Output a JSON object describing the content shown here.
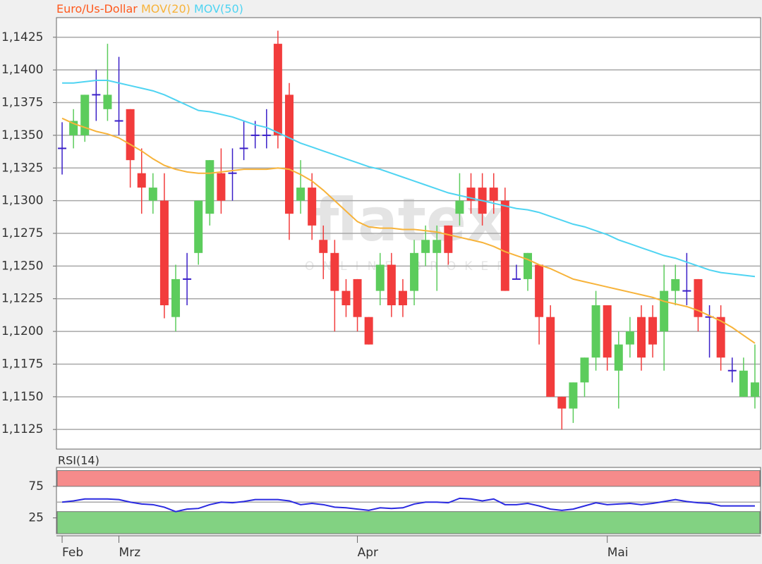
{
  "chart_data": [
    {
      "type": "candlestick",
      "name": "Euro/Us-Dollar",
      "name_color": "#ff5a1e",
      "up_color": "#5ccc5c",
      "down_color": "#f23c3c",
      "flat_color": "#3a1fc8",
      "watermark": "flatex",
      "watermark_sub": "ONLINE BROKER",
      "categories": [
        "Feb",
        null,
        null,
        null,
        null,
        "Mrz",
        null,
        null,
        null,
        null,
        null,
        null,
        null,
        null,
        null,
        null,
        null,
        null,
        null,
        null,
        null,
        null,
        null,
        null,
        null,
        null,
        "Apr",
        null,
        null,
        null,
        null,
        null,
        null,
        null,
        null,
        null,
        null,
        null,
        null,
        null,
        null,
        null,
        null,
        null,
        null,
        null,
        null,
        null,
        "Mai",
        null,
        null,
        null,
        null,
        null,
        null,
        null,
        null,
        null,
        null,
        null,
        null,
        null
      ],
      "open": [
        1.134,
        1.135,
        1.135,
        1.1381,
        1.137,
        1.1361,
        1.137,
        1.1321,
        1.13,
        1.13,
        1.1211,
        1.124,
        1.126,
        1.129,
        1.1321,
        1.1321,
        1.134,
        1.135,
        1.135,
        1.142,
        1.1381,
        1.13,
        1.131,
        1.127,
        1.126,
        1.1231,
        1.124,
        1.1211,
        1.1231,
        1.1251,
        1.1231,
        1.1231,
        1.126,
        1.126,
        1.1281,
        1.129,
        1.131,
        1.131,
        1.131,
        1.13,
        1.124,
        1.124,
        1.1251,
        1.1211,
        1.115,
        1.1141,
        1.1161,
        1.118,
        1.122,
        1.117,
        1.119,
        1.1211,
        1.1211,
        1.12,
        1.1231,
        1.1231,
        1.124,
        1.1211,
        1.1211,
        1.117,
        1.115,
        1.115
      ],
      "high": [
        1.136,
        1.137,
        1.1381,
        1.14,
        1.142,
        1.141,
        1.137,
        1.134,
        1.1321,
        1.1321,
        1.1251,
        1.126,
        1.13,
        1.1331,
        1.134,
        1.134,
        1.1361,
        1.1361,
        1.137,
        1.143,
        1.139,
        1.1331,
        1.1321,
        1.1281,
        1.127,
        1.124,
        1.124,
        1.1211,
        1.126,
        1.126,
        1.124,
        1.127,
        1.1281,
        1.1281,
        1.1281,
        1.1321,
        1.1321,
        1.1321,
        1.1321,
        1.131,
        1.1251,
        1.126,
        1.1251,
        1.122,
        1.115,
        1.1161,
        1.118,
        1.1231,
        1.122,
        1.12,
        1.1211,
        1.122,
        1.122,
        1.1251,
        1.1251,
        1.126,
        1.124,
        1.122,
        1.122,
        1.118,
        1.118,
        1.119
      ],
      "low": [
        1.132,
        1.134,
        1.1345,
        1.1361,
        1.1361,
        1.135,
        1.131,
        1.129,
        1.129,
        1.121,
        1.12,
        1.122,
        1.1251,
        1.1281,
        1.129,
        1.13,
        1.1331,
        1.134,
        1.134,
        1.134,
        1.127,
        1.129,
        1.127,
        1.124,
        1.12,
        1.1211,
        1.12,
        1.119,
        1.122,
        1.1211,
        1.1211,
        1.122,
        1.125,
        1.1231,
        1.1251,
        1.1281,
        1.129,
        1.1281,
        1.129,
        1.1231,
        1.124,
        1.1231,
        1.119,
        1.115,
        1.1125,
        1.113,
        1.115,
        1.117,
        1.117,
        1.1141,
        1.118,
        1.117,
        1.118,
        1.117,
        1.122,
        1.122,
        1.12,
        1.118,
        1.117,
        1.1161,
        1.115,
        1.1141
      ],
      "close": [
        1.134,
        1.1361,
        1.1381,
        1.1381,
        1.1381,
        1.1361,
        1.1331,
        1.131,
        1.131,
        1.122,
        1.124,
        1.124,
        1.13,
        1.1331,
        1.13,
        1.1321,
        1.134,
        1.135,
        1.135,
        1.135,
        1.129,
        1.131,
        1.1281,
        1.126,
        1.1231,
        1.122,
        1.1211,
        1.119,
        1.1251,
        1.122,
        1.122,
        1.126,
        1.127,
        1.127,
        1.126,
        1.13,
        1.13,
        1.129,
        1.13,
        1.1231,
        1.124,
        1.126,
        1.1211,
        1.115,
        1.1141,
        1.1161,
        1.118,
        1.122,
        1.118,
        1.119,
        1.12,
        1.118,
        1.119,
        1.1231,
        1.124,
        1.1231,
        1.1211,
        1.1211,
        1.118,
        1.117,
        1.117,
        1.1161
      ],
      "series": [
        {
          "name": "MOV(20)",
          "color": "#f7b33a",
          "values": [
            1.1363,
            1.1359,
            1.1356,
            1.1353,
            1.1351,
            1.1348,
            1.1343,
            1.1338,
            1.1332,
            1.1327,
            1.1324,
            1.1322,
            1.1321,
            1.1321,
            1.1322,
            1.1323,
            1.1324,
            1.1324,
            1.1324,
            1.1325,
            1.1324,
            1.132,
            1.1315,
            1.1308,
            1.13,
            1.1292,
            1.1284,
            1.128,
            1.1279,
            1.1279,
            1.1278,
            1.1278,
            1.1277,
            1.1276,
            1.1274,
            1.1272,
            1.127,
            1.1268,
            1.1265,
            1.1261,
            1.1258,
            1.1255,
            1.1251,
            1.1248,
            1.1244,
            1.124,
            1.1238,
            1.1236,
            1.1234,
            1.1232,
            1.123,
            1.1228,
            1.1226,
            1.1223,
            1.1221,
            1.1219,
            1.1216,
            1.1212,
            1.1208,
            1.1203,
            1.1197,
            1.1191
          ]
        },
        {
          "name": "MOV(50)",
          "color": "#4fd4f2",
          "values": [
            1.139,
            1.139,
            1.1391,
            1.1392,
            1.1392,
            1.139,
            1.1388,
            1.1386,
            1.1384,
            1.1381,
            1.1377,
            1.1373,
            1.1369,
            1.1368,
            1.1366,
            1.1364,
            1.1361,
            1.1358,
            1.1356,
            1.1352,
            1.1348,
            1.1344,
            1.1341,
            1.1338,
            1.1335,
            1.1332,
            1.1329,
            1.1326,
            1.1324,
            1.1321,
            1.1318,
            1.1315,
            1.1312,
            1.1309,
            1.1306,
            1.1304,
            1.1302,
            1.13,
            1.1298,
            1.1296,
            1.1294,
            1.1293,
            1.1291,
            1.1288,
            1.1285,
            1.1282,
            1.128,
            1.1277,
            1.1274,
            1.127,
            1.1267,
            1.1264,
            1.1261,
            1.1258,
            1.1256,
            1.1253,
            1.125,
            1.1247,
            1.1245,
            1.1244,
            1.1243,
            1.1242
          ]
        }
      ],
      "ylim": [
        1.111,
        1.144
      ],
      "yticks": [
        {
          "value": 1.1125,
          "label": "1,1125"
        },
        {
          "value": 1.115,
          "label": "1,1150"
        },
        {
          "value": 1.1175,
          "label": "1,1175"
        },
        {
          "value": 1.12,
          "label": "1,1200"
        },
        {
          "value": 1.1225,
          "label": "1,1225"
        },
        {
          "value": 1.125,
          "label": "1,1250"
        },
        {
          "value": 1.1275,
          "label": "1,1275"
        },
        {
          "value": 1.13,
          "label": "1,1300"
        },
        {
          "value": 1.1325,
          "label": "1,1325"
        },
        {
          "value": 1.135,
          "label": "1,1350"
        },
        {
          "value": 1.1375,
          "label": "1,1375"
        },
        {
          "value": 1.14,
          "label": "1,1400"
        },
        {
          "value": 1.1425,
          "label": "1,1425"
        }
      ],
      "grid": true
    },
    {
      "type": "line",
      "title": "RSI(14)",
      "title_color": "#1818d8",
      "series": [
        {
          "color": "#2a2ae0",
          "values": [
            50,
            52,
            55,
            55,
            55,
            54,
            50,
            47,
            46,
            42,
            35,
            39,
            40,
            46,
            50,
            49,
            51,
            54,
            54,
            54,
            52,
            46,
            48,
            46,
            42,
            41,
            39,
            37,
            41,
            40,
            41,
            47,
            50,
            50,
            49,
            56,
            55,
            52,
            55,
            46,
            46,
            48,
            44,
            39,
            37,
            39,
            44,
            49,
            46,
            47,
            48,
            46,
            48,
            51,
            54,
            51,
            49,
            48,
            44,
            44,
            44,
            44
          ]
        }
      ],
      "ylim": [
        0,
        105
      ],
      "yticks": [
        25,
        75
      ],
      "midline": 50,
      "bands": [
        {
          "range": [
            75,
            100
          ],
          "color": "#f68b8b"
        },
        {
          "range": [
            0,
            35
          ],
          "color": "#82d282"
        }
      ]
    }
  ]
}
